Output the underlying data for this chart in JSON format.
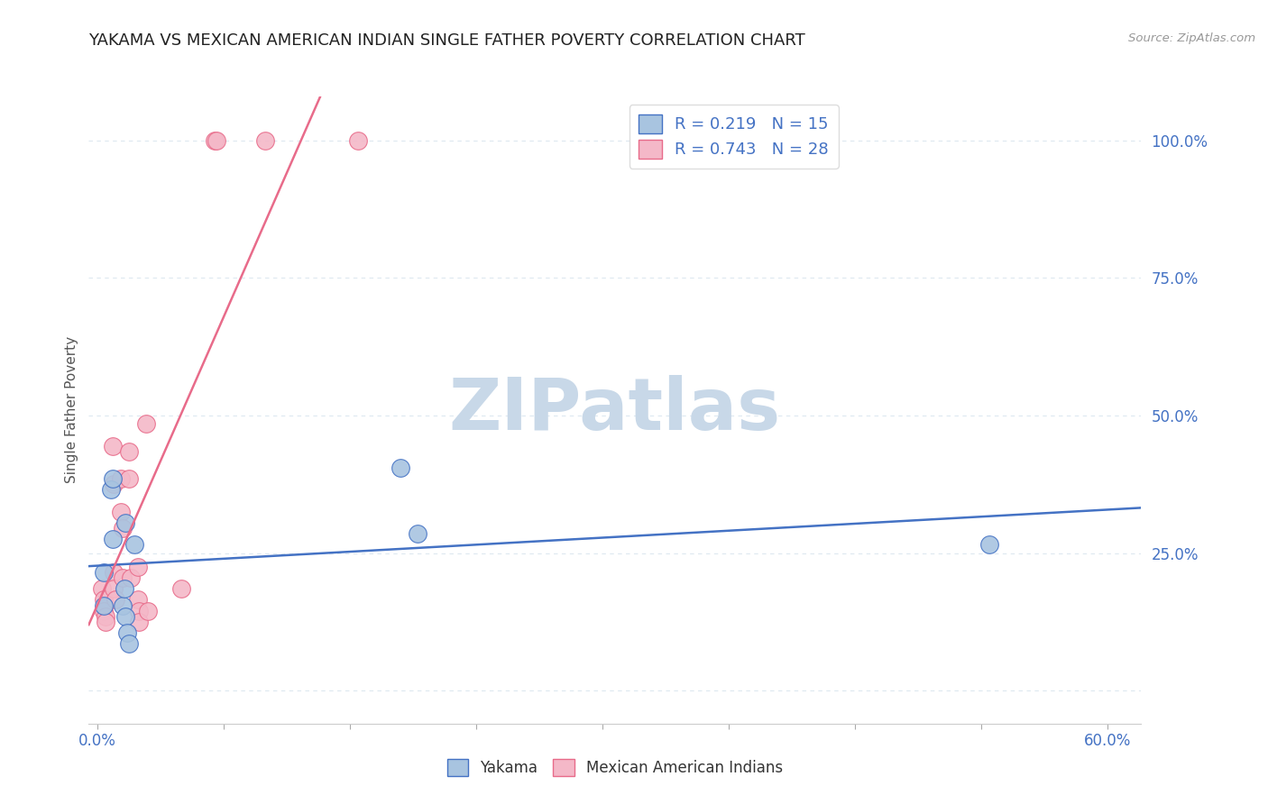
{
  "title": "YAKAMA VS MEXICAN AMERICAN INDIAN SINGLE FATHER POVERTY CORRELATION CHART",
  "source": "Source: ZipAtlas.com",
  "xlabel_ticks_shown": [
    "0.0%",
    "",
    "",
    "",
    "",
    "",
    "",
    "",
    "60.0%"
  ],
  "xlabel_vals": [
    0.0,
    0.075,
    0.15,
    0.225,
    0.3,
    0.375,
    0.45,
    0.525,
    0.6
  ],
  "ylabel_ticks": [
    "",
    "25.0%",
    "50.0%",
    "75.0%",
    "100.0%"
  ],
  "ylabel_vals": [
    0.0,
    0.25,
    0.5,
    0.75,
    1.0
  ],
  "ylabel_label": "Single Father Poverty",
  "xlim": [
    -0.005,
    0.62
  ],
  "ylim": [
    -0.06,
    1.08
  ],
  "yakama_color": "#a8c4e0",
  "mexican_color": "#f4b8c8",
  "yakama_line_color": "#4472c4",
  "mexican_line_color": "#e86b8a",
  "legend_label_yakama": "Yakama",
  "legend_label_mexican": "Mexican American Indians",
  "R_yakama": "0.219",
  "N_yakama": "15",
  "R_mexican": "0.743",
  "N_mexican": "28",
  "watermark": "ZIPatlas",
  "watermark_color": "#c8d8e8",
  "yakama_x": [
    0.004,
    0.004,
    0.008,
    0.009,
    0.009,
    0.015,
    0.016,
    0.017,
    0.017,
    0.022,
    0.18,
    0.19,
    0.53,
    0.018,
    0.019
  ],
  "yakama_y": [
    0.215,
    0.155,
    0.365,
    0.385,
    0.275,
    0.155,
    0.185,
    0.305,
    0.135,
    0.265,
    0.405,
    0.285,
    0.265,
    0.105,
    0.085
  ],
  "mexican_x": [
    0.003,
    0.004,
    0.004,
    0.005,
    0.005,
    0.009,
    0.01,
    0.01,
    0.01,
    0.011,
    0.014,
    0.014,
    0.015,
    0.015,
    0.019,
    0.019,
    0.02,
    0.024,
    0.024,
    0.025,
    0.025,
    0.029,
    0.03,
    0.05,
    0.07,
    0.071,
    0.1,
    0.155
  ],
  "mexican_y": [
    0.185,
    0.165,
    0.145,
    0.135,
    0.125,
    0.445,
    0.375,
    0.215,
    0.185,
    0.165,
    0.385,
    0.325,
    0.295,
    0.205,
    0.435,
    0.385,
    0.205,
    0.225,
    0.165,
    0.145,
    0.125,
    0.485,
    0.145,
    0.185,
    1.0,
    1.0,
    1.0,
    1.0
  ],
  "bg_color": "#ffffff",
  "grid_color": "#dde8f0",
  "tick_color": "#4472c4",
  "tick_fontsize": 12,
  "title_fontsize": 13,
  "ylabel_fontsize": 11,
  "marker_size": 200
}
